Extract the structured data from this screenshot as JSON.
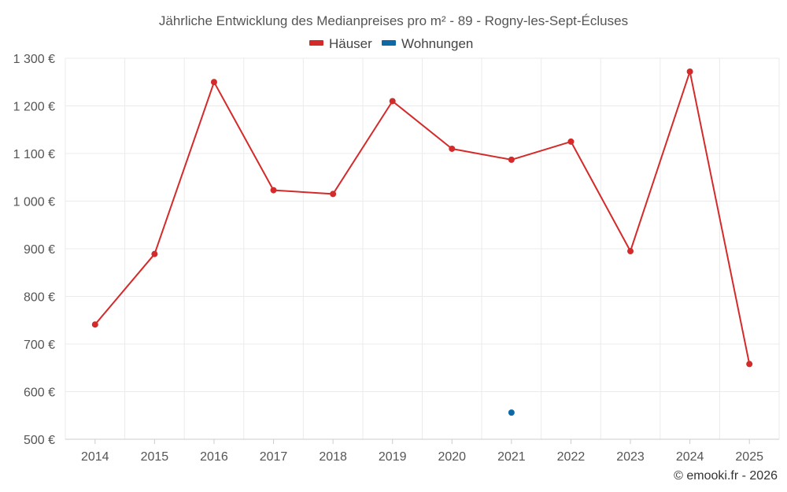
{
  "chart_data": {
    "type": "line",
    "title": "Jährliche Entwicklung des Medianpreises pro m² - 89 - Rogny-les-Sept-Écluses",
    "categories": [
      "2014",
      "2015",
      "2016",
      "2017",
      "2018",
      "2019",
      "2020",
      "2021",
      "2022",
      "2023",
      "2024",
      "2025"
    ],
    "series": [
      {
        "name": "Häuser",
        "color": "#d42a2a",
        "values": [
          741,
          889,
          1250,
          1023,
          1015,
          1210,
          1110,
          1087,
          1125,
          895,
          1272,
          658
        ]
      },
      {
        "name": "Wohnungen",
        "color": "#0e6aa6",
        "values": [
          null,
          null,
          null,
          null,
          null,
          null,
          null,
          556,
          null,
          null,
          null,
          null
        ]
      }
    ],
    "yticks": [
      "500 €",
      "600 €",
      "700 €",
      "800 €",
      "900 €",
      "1 000 €",
      "1 100 €",
      "1 200 €",
      "1 300 €"
    ],
    "ylim": [
      500,
      1300
    ],
    "legend": "top-center",
    "grid": true,
    "credit": "© emooki.fr - 2026"
  }
}
